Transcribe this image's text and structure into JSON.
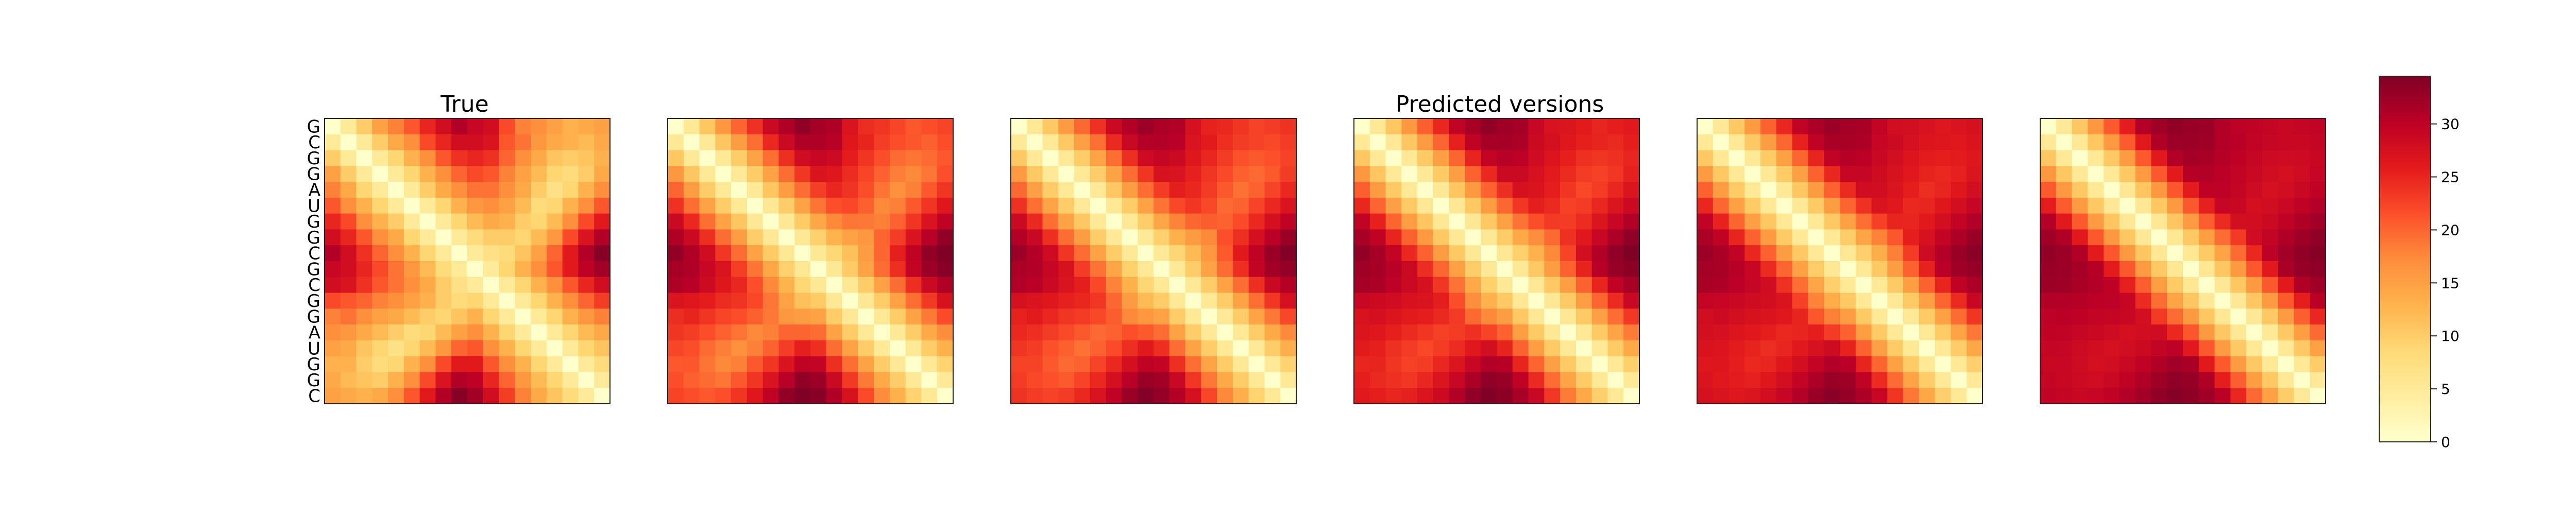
{
  "chart_data": {
    "type": "heatmap",
    "titles": [
      "True",
      "Predicted versions"
    ],
    "sequence": [
      "G",
      "C",
      "G",
      "G",
      "A",
      "U",
      "G",
      "G",
      "C",
      "G",
      "C",
      "G",
      "G",
      "A",
      "U",
      "G",
      "G",
      "C"
    ],
    "panels": 6,
    "colormap": "YlOrRd",
    "colorbar": {
      "vmin": 0,
      "vmax": 34.5,
      "ticks": [
        "0",
        "5",
        "10",
        "15",
        "20",
        "25",
        "30"
      ]
    },
    "matrix_model": "distance matrix of a helical hairpin; off-diagonal distances increase with separation, peaking near 34 where the sequence ends meet its center",
    "true_matrix": [
      [
        0,
        5,
        10,
        15,
        18,
        21,
        25,
        28,
        31,
        29,
        28,
        22,
        18,
        17,
        15,
        13,
        14,
        15
      ],
      [
        5,
        0,
        5,
        10,
        14,
        17,
        22,
        25,
        28,
        28,
        27,
        21,
        19,
        16,
        14,
        13,
        12,
        14
      ],
      [
        10,
        5,
        0,
        5,
        9,
        13,
        17,
        21,
        24,
        25,
        24,
        20,
        17,
        14,
        11,
        10,
        11,
        13
      ],
      [
        15,
        10,
        5,
        0,
        5,
        9,
        13,
        17,
        20,
        22,
        21,
        18,
        15,
        12,
        9,
        8,
        10,
        14
      ],
      [
        18,
        14,
        9,
        5,
        0,
        5,
        10,
        14,
        17,
        19,
        19,
        17,
        14,
        10,
        7,
        9,
        13,
        17
      ],
      [
        21,
        17,
        13,
        9,
        5,
        0,
        5,
        9,
        13,
        16,
        17,
        15,
        12,
        8,
        9,
        13,
        17,
        21
      ],
      [
        25,
        22,
        17,
        13,
        10,
        5,
        0,
        5,
        9,
        12,
        14,
        13,
        10,
        9,
        12,
        17,
        22,
        26
      ],
      [
        28,
        25,
        21,
        17,
        14,
        9,
        5,
        0,
        5,
        8,
        10,
        10,
        9,
        12,
        16,
        22,
        27,
        31
      ],
      [
        31,
        28,
        24,
        20,
        17,
        13,
        9,
        5,
        0,
        5,
        7,
        8,
        11,
        15,
        20,
        26,
        31,
        34
      ],
      [
        29,
        28,
        25,
        22,
        19,
        16,
        12,
        8,
        5,
        0,
        5,
        9,
        13,
        17,
        21,
        26,
        30,
        32
      ],
      [
        28,
        27,
        24,
        21,
        19,
        17,
        14,
        10,
        7,
        5,
        0,
        5,
        9,
        13,
        17,
        21,
        25,
        28
      ],
      [
        22,
        21,
        20,
        18,
        17,
        15,
        13,
        10,
        8,
        9,
        5,
        0,
        5,
        9,
        13,
        17,
        20,
        23
      ],
      [
        18,
        19,
        17,
        15,
        14,
        12,
        10,
        9,
        11,
        13,
        9,
        5,
        0,
        5,
        9,
        13,
        16,
        18
      ],
      [
        17,
        16,
        14,
        12,
        10,
        8,
        9,
        12,
        15,
        17,
        13,
        9,
        5,
        0,
        5,
        9,
        12,
        14
      ],
      [
        15,
        14,
        11,
        9,
        7,
        9,
        12,
        16,
        20,
        21,
        17,
        13,
        9,
        5,
        0,
        5,
        9,
        11
      ],
      [
        13,
        13,
        10,
        8,
        9,
        13,
        17,
        22,
        26,
        26,
        21,
        17,
        13,
        9,
        5,
        0,
        5,
        8
      ],
      [
        14,
        12,
        11,
        10,
        13,
        17,
        22,
        27,
        31,
        30,
        25,
        20,
        16,
        12,
        9,
        5,
        0,
        5
      ],
      [
        15,
        14,
        13,
        14,
        17,
        21,
        26,
        31,
        34,
        32,
        28,
        23,
        18,
        14,
        11,
        8,
        5,
        0
      ]
    ]
  }
}
